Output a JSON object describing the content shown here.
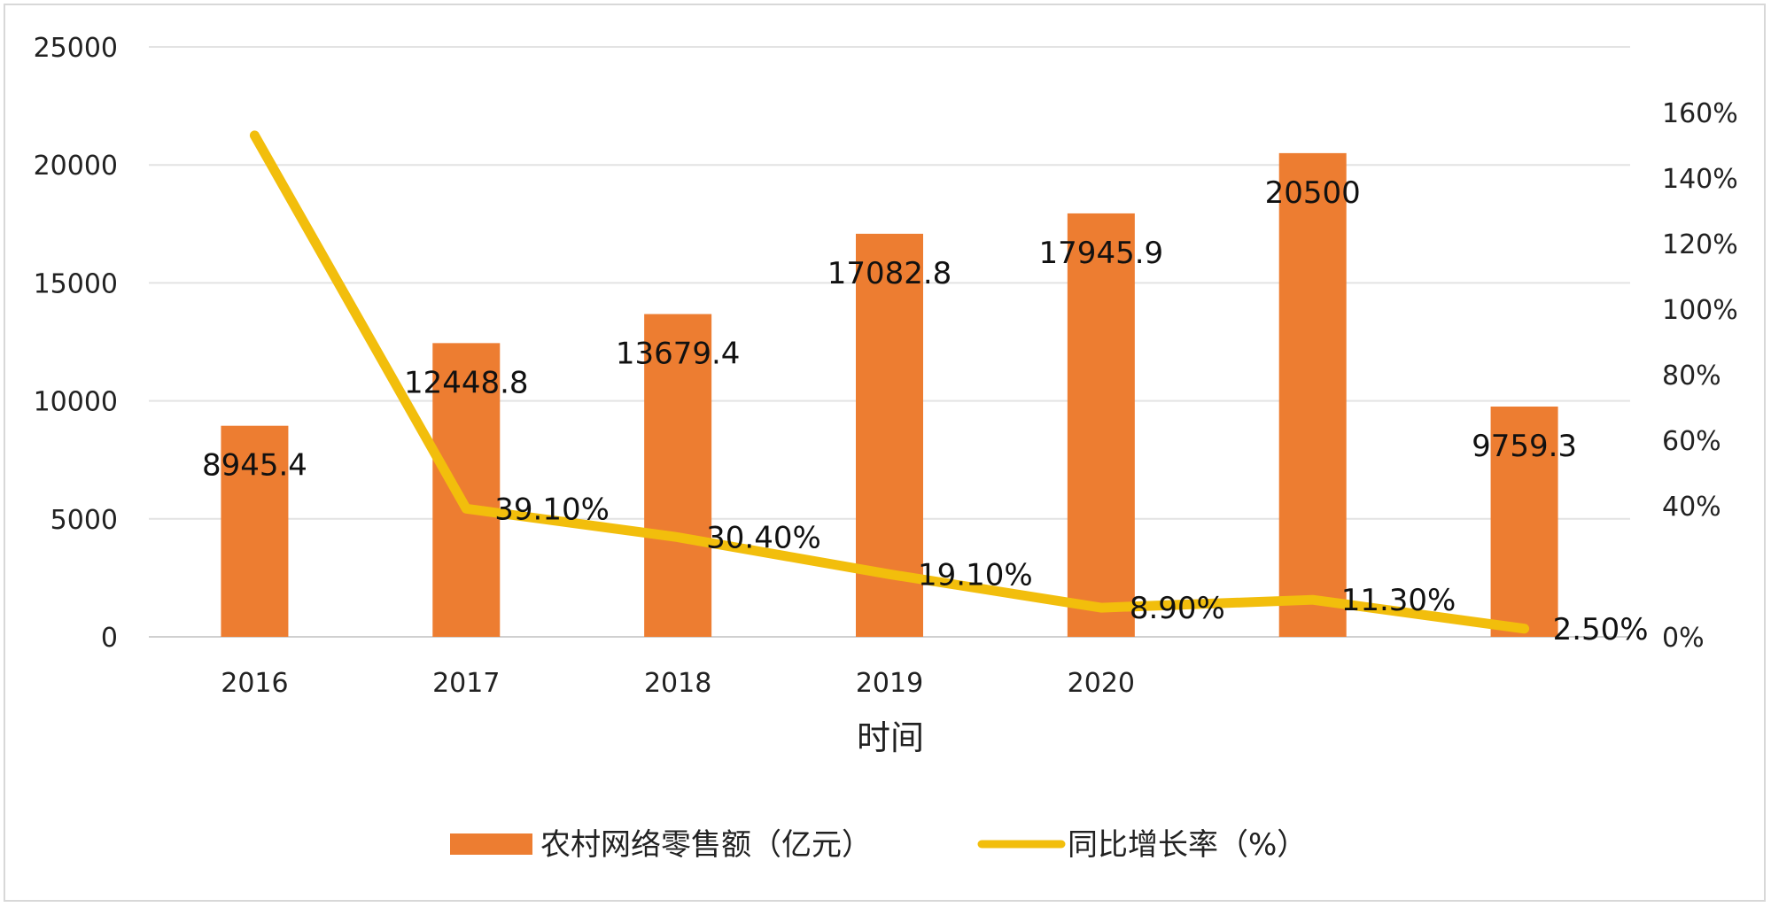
{
  "chart_data": {
    "type": "bar",
    "categories": [
      "2016",
      "2017",
      "2018",
      "2019",
      "2020",
      "",
      ""
    ],
    "xlabel": "时间",
    "ylim": [
      0,
      25000
    ],
    "y_ticks": [
      "0",
      "5000",
      "10000",
      "15000",
      "20000",
      "25000"
    ],
    "y2lim": [
      0,
      180
    ],
    "y2_ticks": [
      "0%",
      "40%",
      "60%",
      "80%",
      "100%",
      "120%",
      "140%",
      "160%"
    ],
    "grid": true,
    "legend_position": "bottom",
    "series": [
      {
        "name": "农村网络零售额（亿元）",
        "type": "bar",
        "axis": "left",
        "color": "#ED7D31",
        "values": [
          8945.4,
          12448.8,
          13679.4,
          17082.8,
          17945.9,
          20500,
          9759.3
        ],
        "labels": [
          "8945.4",
          "12448.8",
          "13679.4",
          "17082.8",
          "17945.9",
          "20500",
          "9759.3"
        ]
      },
      {
        "name": "同比增长率（%）",
        "type": "line",
        "axis": "right",
        "color": "#F2BE0C",
        "values": [
          153,
          39.1,
          30.4,
          19.1,
          8.9,
          11.3,
          2.5
        ],
        "labels": [
          "",
          "39.10%",
          "30.40%",
          "19.10%",
          "8.90%",
          "11.30%",
          "2.50%"
        ]
      }
    ]
  }
}
